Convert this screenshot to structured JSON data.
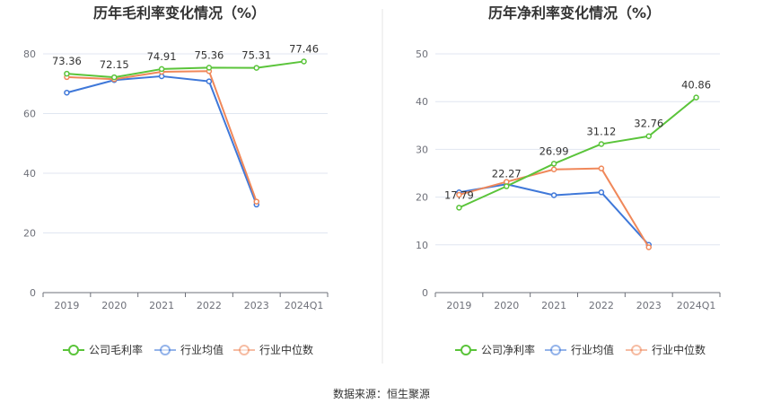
{
  "chart_data": [
    {
      "type": "line",
      "title": "历年毛利率变化情况（%）",
      "categories": [
        "2019",
        "2020",
        "2021",
        "2022",
        "2023",
        "2024Q1"
      ],
      "ylim": [
        0,
        80
      ],
      "yticks": [
        "0",
        "20",
        "40",
        "60",
        "80"
      ],
      "grid": true,
      "legend_position": "bottom",
      "series": [
        {
          "name": "公司毛利率",
          "color": "#5ac43a",
          "values": [
            73.36,
            72.15,
            74.91,
            75.36,
            75.31,
            77.46
          ],
          "labels": [
            "73.36",
            "72.15",
            "74.91",
            "75.36",
            "75.31",
            "77.46"
          ]
        },
        {
          "name": "行业均值",
          "color": "#3f78d9",
          "values": [
            67.0,
            71.2,
            72.5,
            70.8,
            29.5,
            null
          ]
        },
        {
          "name": "行业中位数",
          "color": "#f0885a",
          "values": [
            72.2,
            71.5,
            74.0,
            74.2,
            30.5,
            null
          ]
        }
      ]
    },
    {
      "type": "line",
      "title": "历年净利率变化情况（%）",
      "categories": [
        "2019",
        "2020",
        "2021",
        "2022",
        "2023",
        "2024Q1"
      ],
      "ylim": [
        0,
        50
      ],
      "yticks": [
        "0",
        "10",
        "20",
        "30",
        "40",
        "50"
      ],
      "grid": true,
      "legend_position": "bottom",
      "series": [
        {
          "name": "公司净利率",
          "color": "#5ac43a",
          "values": [
            17.79,
            22.27,
            26.99,
            31.12,
            32.76,
            40.86
          ],
          "labels": [
            "17.79",
            "22.27",
            "26.99",
            "31.12",
            "32.76",
            "40.86"
          ]
        },
        {
          "name": "行业均值",
          "color": "#3f78d9",
          "values": [
            21.0,
            22.7,
            20.4,
            21.0,
            10.0,
            null
          ]
        },
        {
          "name": "行业中位数",
          "color": "#f0885a",
          "values": [
            20.5,
            23.2,
            25.8,
            26.0,
            9.5,
            null
          ]
        }
      ]
    }
  ],
  "footer": {
    "source": "数据来源：恒生聚源"
  }
}
